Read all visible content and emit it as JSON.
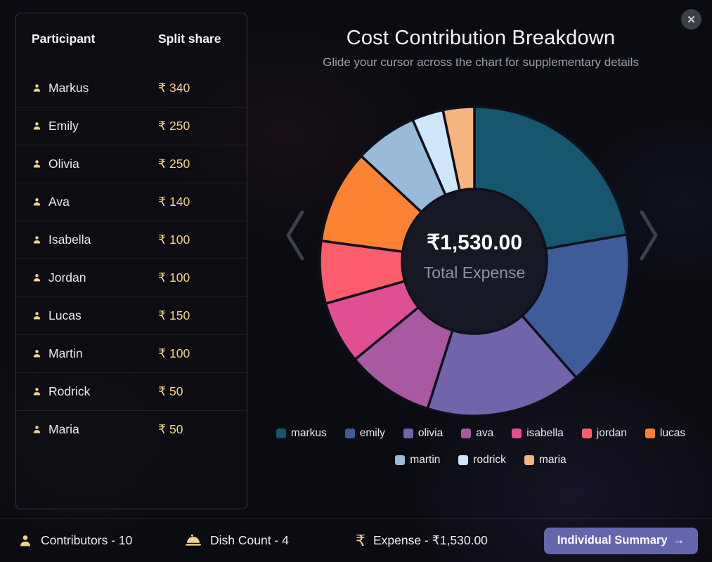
{
  "modal": {
    "title": "Cost Contribution Breakdown",
    "subtitle": "Glide your cursor across the chart for supplementary details",
    "close_icon": "✕"
  },
  "table": {
    "headers": {
      "participant": "Participant",
      "share": "Split share"
    },
    "rows": [
      {
        "name": "Markus",
        "amount": "₹ 340"
      },
      {
        "name": "Emily",
        "amount": "₹ 250"
      },
      {
        "name": "Olivia",
        "amount": "₹ 250"
      },
      {
        "name": "Ava",
        "amount": "₹ 140"
      },
      {
        "name": "Isabella",
        "amount": "₹ 100"
      },
      {
        "name": "Jordan",
        "amount": "₹ 100"
      },
      {
        "name": "Lucas",
        "amount": "₹ 150"
      },
      {
        "name": "Martin",
        "amount": "₹ 100"
      },
      {
        "name": "Rodrick",
        "amount": "₹ 50"
      },
      {
        "name": "Maria",
        "amount": "₹ 50"
      }
    ]
  },
  "chart_data": {
    "type": "pie",
    "donut": true,
    "title": "Cost Contribution Breakdown",
    "categories": [
      "markus",
      "emily",
      "olivia",
      "ava",
      "isabella",
      "jordan",
      "lucas",
      "martin",
      "rodrick",
      "maria"
    ],
    "values": [
      340,
      250,
      250,
      140,
      100,
      100,
      150,
      100,
      50,
      50
    ],
    "colors": [
      "#16566f",
      "#3e5c9a",
      "#7264ab",
      "#a959a2",
      "#e04f93",
      "#fb5d6d",
      "#fb8133",
      "#99bbd9",
      "#cfe6f8",
      "#f6b47e"
    ],
    "total": 1530,
    "center_value": "₹1,530.00",
    "center_label": "Total Expense",
    "legend_position": "bottom",
    "hole_color": "#161924",
    "slice_gap_color": "#0f1118"
  },
  "footer": {
    "stats": [
      {
        "icon": "person-icon",
        "label": "Contributors - 10"
      },
      {
        "icon": "cloche-icon",
        "label": "Dish Count - 4"
      },
      {
        "icon": "rupee-icon",
        "label": "Expense - ₹1,530.00"
      }
    ],
    "button_label": "Individual Summary",
    "button_arrow": "→"
  },
  "colors": {
    "accent_gold": "#f0d28c",
    "button_purple": "#6466ad",
    "background": "#0b0c12"
  }
}
